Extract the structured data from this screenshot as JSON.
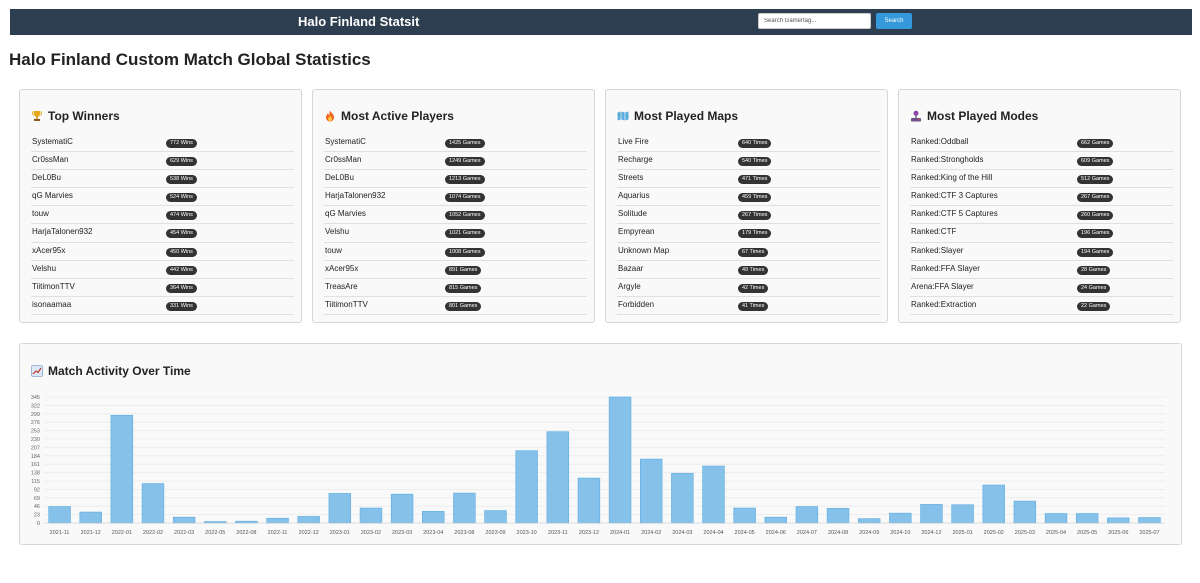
{
  "nav": {
    "brand": "Halo Finland Statsit",
    "search_placeholder": "Search Gamertag...",
    "search_button": "Search"
  },
  "page_title": "Halo Finland Custom Match Global Statistics",
  "cards": [
    {
      "title": "Top Winners",
      "icon": "trophy-icon",
      "rows": [
        {
          "name": "SystematiC",
          "value": "772 Wins"
        },
        {
          "name": "Cr0ssMan",
          "value": "629 Wins"
        },
        {
          "name": "DeL0Bu",
          "value": "538 Wins"
        },
        {
          "name": "qG Marvies",
          "value": "524 Wins"
        },
        {
          "name": "touw",
          "value": "474 Wins"
        },
        {
          "name": "HarjaTalonen932",
          "value": "454 Wins"
        },
        {
          "name": "xAcer95x",
          "value": "450 Wins"
        },
        {
          "name": "Velshu",
          "value": "442 Wins"
        },
        {
          "name": "TiitimonTTV",
          "value": "364 Wins"
        },
        {
          "name": "isonaamaa",
          "value": "331 Wins"
        }
      ]
    },
    {
      "title": "Most Active Players",
      "icon": "fire-icon",
      "rows": [
        {
          "name": "SystematiC",
          "value": "1425 Games"
        },
        {
          "name": "Cr0ssMan",
          "value": "1249 Games"
        },
        {
          "name": "DeL0Bu",
          "value": "1213 Games"
        },
        {
          "name": "HarjaTalonen932",
          "value": "1074 Games"
        },
        {
          "name": "qG Marvies",
          "value": "1052 Games"
        },
        {
          "name": "Velshu",
          "value": "1021 Games"
        },
        {
          "name": "touw",
          "value": "1008 Games"
        },
        {
          "name": "xAcer95x",
          "value": "891 Games"
        },
        {
          "name": "TreasAre",
          "value": "815 Games"
        },
        {
          "name": "TiitimonTTV",
          "value": "801 Games"
        }
      ]
    },
    {
      "title": "Most Played Maps",
      "icon": "map-icon",
      "rows": [
        {
          "name": "Live Fire",
          "value": "640 Times"
        },
        {
          "name": "Recharge",
          "value": "540 Times"
        },
        {
          "name": "Streets",
          "value": "471 Times"
        },
        {
          "name": "Aquarius",
          "value": "459 Times"
        },
        {
          "name": "Solitude",
          "value": "267 Times"
        },
        {
          "name": "Empyrean",
          "value": "179 Times"
        },
        {
          "name": "Unknown Map",
          "value": "67 Times"
        },
        {
          "name": "Bazaar",
          "value": "49 Times"
        },
        {
          "name": "Argyle",
          "value": "42 Times"
        },
        {
          "name": "Forbidden",
          "value": "41 Times"
        }
      ]
    },
    {
      "title": "Most Played Modes",
      "icon": "joystick-icon",
      "rows": [
        {
          "name": "Ranked:Oddball",
          "value": "662 Games"
        },
        {
          "name": "Ranked:Strongholds",
          "value": "609 Games"
        },
        {
          "name": "Ranked:King of the Hill",
          "value": "512 Games"
        },
        {
          "name": "Ranked:CTF 3 Captures",
          "value": "267 Games"
        },
        {
          "name": "Ranked:CTF 5 Captures",
          "value": "260 Games"
        },
        {
          "name": "Ranked:CTF",
          "value": "196 Games"
        },
        {
          "name": "Ranked:Slayer",
          "value": "194 Games"
        },
        {
          "name": "Ranked:FFA Slayer",
          "value": "28 Games"
        },
        {
          "name": "Arena:FFA Slayer",
          "value": "24 Games"
        },
        {
          "name": "Ranked:Extraction",
          "value": "22 Games"
        }
      ]
    }
  ],
  "chart_title": "Match Activity Over Time",
  "chart_icon": "chart-icon",
  "chart_data": {
    "type": "bar",
    "title": "Match Activity Over Time",
    "xlabel": "",
    "ylabel": "",
    "ylim": [
      0,
      345
    ],
    "yticks": [
      0,
      23,
      46,
      69,
      92,
      115,
      138,
      161,
      184,
      207,
      230,
      253,
      276,
      299,
      322,
      345
    ],
    "grid": true,
    "bar_color": "#85c1e9",
    "categories": [
      "2021-11",
      "2021-12",
      "2022-01",
      "2022-02",
      "2022-03",
      "2022-05",
      "2022-08",
      "2022-11",
      "2022-12",
      "2023-01",
      "2023-02",
      "2023-03",
      "2023-04",
      "2023-08",
      "2023-09",
      "2023-10",
      "2023-11",
      "2023-12",
      "2024-01",
      "2024-02",
      "2024-03",
      "2024-04",
      "2024-05",
      "2024-06",
      "2024-07",
      "2024-08",
      "2024-09",
      "2024-10",
      "2024-12",
      "2025-01",
      "2025-02",
      "2025-03",
      "2025-04",
      "2025-05",
      "2025-06",
      "2025-07"
    ],
    "values": [
      45,
      30,
      295,
      108,
      16,
      4,
      5,
      13,
      18,
      81,
      41,
      79,
      32,
      82,
      34,
      198,
      250,
      123,
      345,
      175,
      136,
      156,
      41,
      16,
      45,
      40,
      12,
      27,
      51,
      50,
      104,
      60,
      26,
      26,
      14,
      15
    ]
  }
}
